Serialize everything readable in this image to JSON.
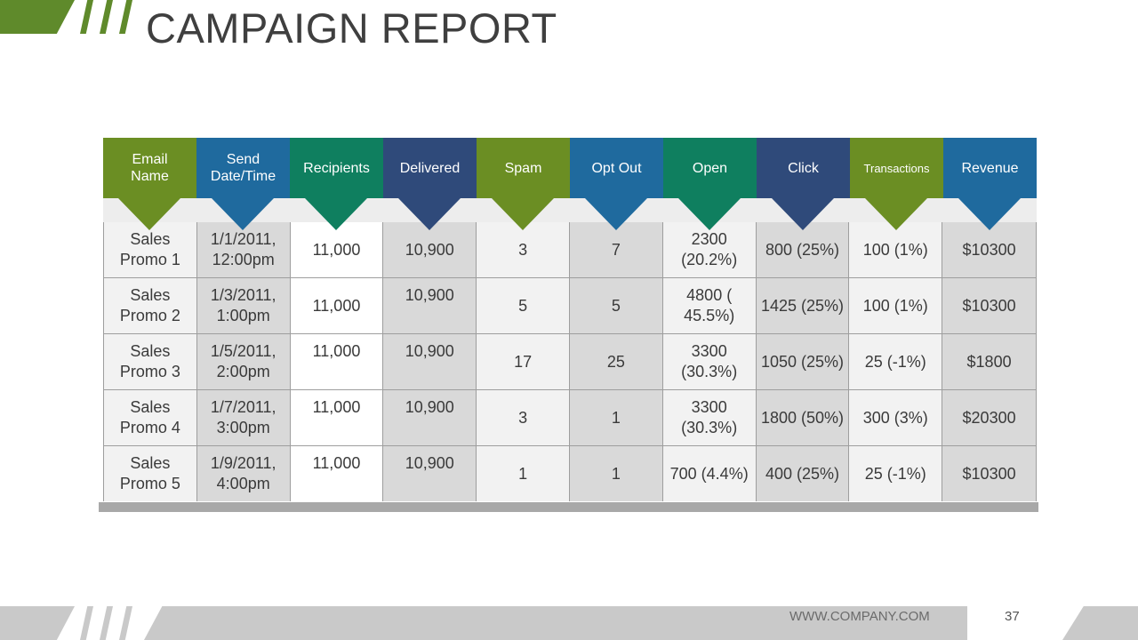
{
  "slide": {
    "title": "CAMPAIGN REPORT",
    "footer_url": "WWW.COMPANY.COM",
    "page_number": "37"
  },
  "colors": {
    "green": "#6b8e23",
    "blue": "#1f6a9e",
    "teal": "#0f7f5f",
    "navy": "#2f4a7a",
    "accent_bar": "#5f8a2b"
  },
  "table": {
    "headers": [
      {
        "label": "Email\nName",
        "color": "#6b8e23"
      },
      {
        "label": "Send\nDate/Time",
        "color": "#1f6a9e"
      },
      {
        "label": "Recipients",
        "color": "#0f7f5f"
      },
      {
        "label": "Delivered",
        "color": "#2f4a7a"
      },
      {
        "label": "Spam",
        "color": "#6b8e23"
      },
      {
        "label": "Opt Out",
        "color": "#1f6a9e"
      },
      {
        "label": "Open",
        "color": "#0f7f5f"
      },
      {
        "label": "Click",
        "color": "#2f4a7a"
      },
      {
        "label": "Transactions",
        "color": "#6b8e23"
      },
      {
        "label": "Revenue",
        "color": "#1f6a9e"
      }
    ],
    "rows": [
      [
        "Sales Promo 1",
        "1/1/2011, 12:00pm",
        "11,000",
        "10,900",
        "3",
        "7",
        "2300 (20.2%)",
        "800 (25%)",
        "100 (1%)",
        "$10300"
      ],
      [
        "Sales Promo 2",
        "1/3/2011, 1:00pm",
        "11,000",
        "10,900",
        "5",
        "5",
        "4800 ( 45.5%)",
        "1425 (25%)",
        "100 (1%)",
        "$10300"
      ],
      [
        "Sales Promo 3",
        "1/5/2011, 2:00pm",
        "11,000",
        "10,900",
        "17",
        "25",
        "3300 (30.3%)",
        "1050 (25%)",
        "25 (-1%)",
        "$1800"
      ],
      [
        "Sales Promo 4",
        "1/7/2011, 3:00pm",
        "11,000",
        "10,900",
        "3",
        "1",
        "3300 (30.3%)",
        "1800 (50%)",
        "300 (3%)",
        "$20300"
      ],
      [
        "Sales Promo 5",
        "1/9/2011, 4:00pm",
        "11,000",
        "10,900",
        "1",
        "1",
        "700 (4.4%)",
        "400 (25%)",
        "25 (-1%)",
        "$10300"
      ]
    ]
  }
}
